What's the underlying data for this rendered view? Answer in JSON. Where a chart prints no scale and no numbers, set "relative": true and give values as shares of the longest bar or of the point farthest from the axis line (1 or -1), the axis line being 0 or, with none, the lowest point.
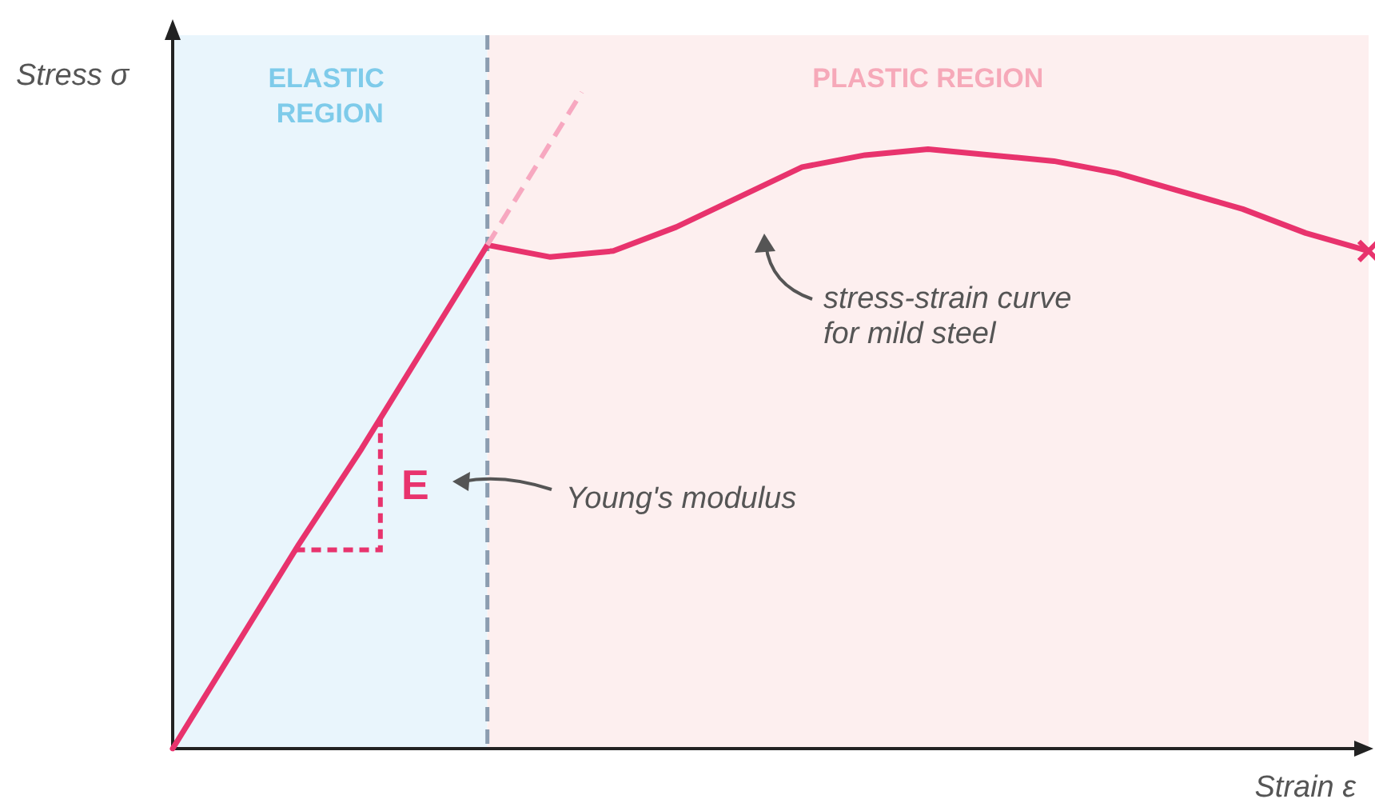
{
  "chart_data": {
    "type": "line",
    "relative": true,
    "grid": false,
    "marker": "none",
    "xlabel": "Strain ε",
    "ylabel": "Stress σ",
    "categories": [
      null,
      null,
      null,
      null,
      null,
      null,
      null,
      null,
      null,
      null,
      null,
      null,
      null,
      null,
      null,
      null,
      null,
      null,
      null,
      null
    ],
    "series": [
      {
        "color": "#e8336d",
        "values": [
          0,
          0.17,
          0.34,
          0.5,
          0.67,
          0.84,
          0.82,
          0.83,
          0.87,
          0.92,
          0.97,
          0.99,
          1,
          0.99,
          0.98,
          0.96,
          0.93,
          0.9,
          0.86,
          0.83
        ]
      }
    ],
    "annotations": [
      "ELASTIC REGION",
      "PLASTIC REGION",
      "E",
      "Young's modulus",
      "stress-strain curve for mild steel"
    ]
  }
}
